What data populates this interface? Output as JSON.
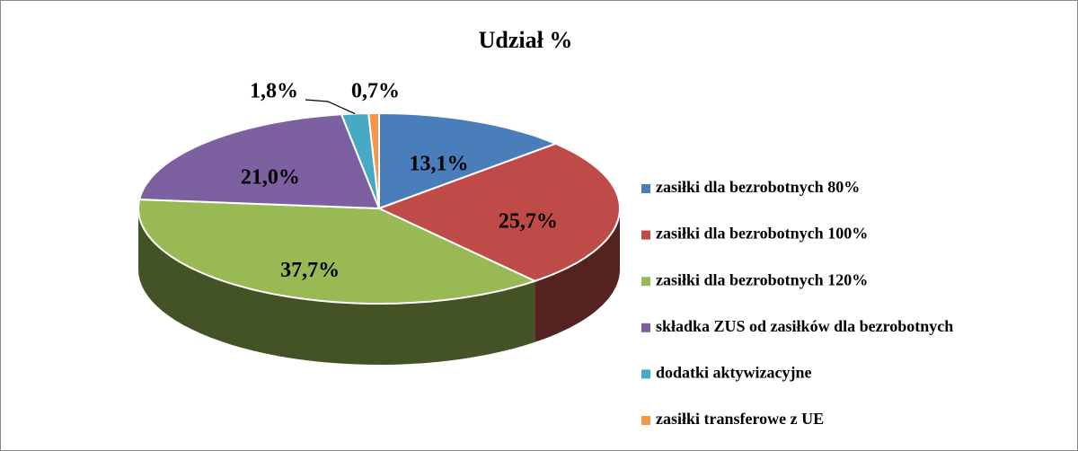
{
  "chart_data": {
    "type": "pie3d",
    "title": "Udział %",
    "categories": [
      "zasiłki dla bezrobotnych 80%",
      "zasiłki dla bezrobotnych 100%",
      "zasiłki dla bezrobotnych 120%",
      "składka ZUS od zasiłków dla bezrobotnych",
      "dodatki aktywizacyjne",
      "zasiłki transferowe z UE"
    ],
    "values": [
      13.1,
      25.7,
      37.7,
      21.0,
      1.8,
      0.7
    ],
    "value_labels": [
      "13,1%",
      "25,7%",
      "37,7%",
      "21,0%",
      "1,8%",
      "0,7%"
    ],
    "colors": [
      "#4a7ebb",
      "#be4b48",
      "#98b954",
      "#7d60a0",
      "#46aac5",
      "#f79646"
    ],
    "legend": "right"
  }
}
